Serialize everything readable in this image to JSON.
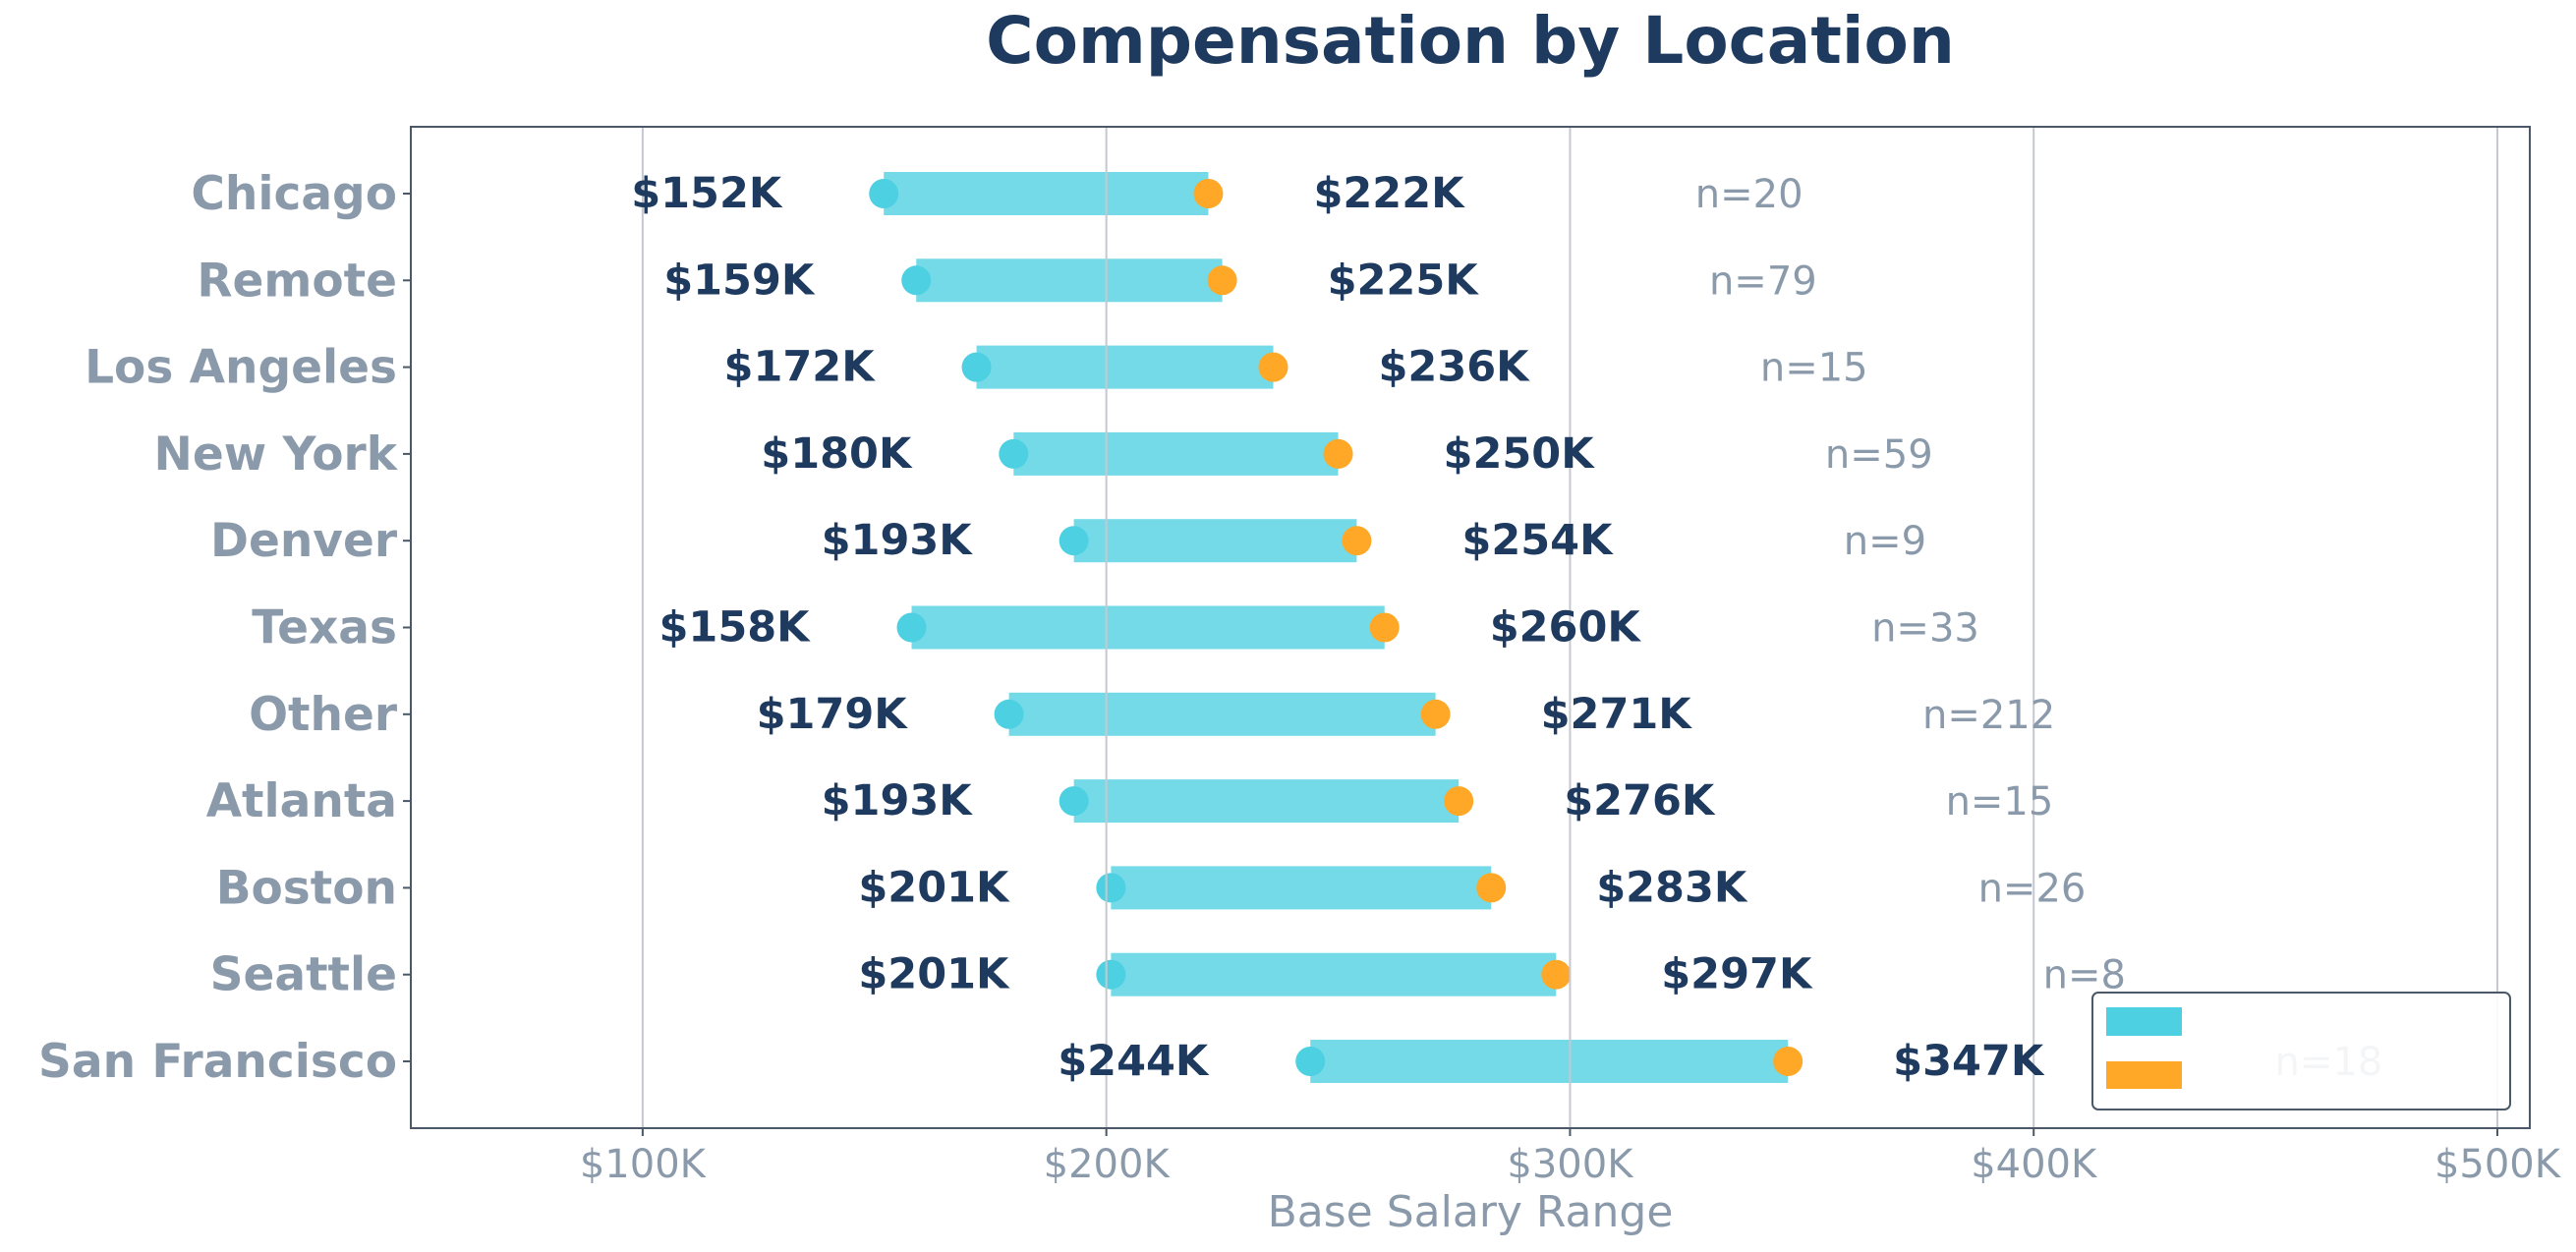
{
  "chart_data": {
    "type": "dumbbell",
    "title": "Compensation by Location",
    "xlabel": "Base Salary Range",
    "ylabel": "",
    "xlim": [
      50000,
      507000
    ],
    "x_ticks": [
      100000,
      200000,
      300000,
      400000,
      500000
    ],
    "x_tick_labels": [
      "$100K",
      "$200K",
      "$300K",
      "$400K",
      "$500K"
    ],
    "grid": "vertical",
    "legend": {
      "placement": "bottom-right",
      "entries": [
        "",
        ""
      ]
    },
    "colors": {
      "min": "#4dd0e1",
      "max": "#ffa726",
      "bar": "#4dd0e1",
      "title": "#1e3a5f",
      "label": "#8a9aab",
      "value": "#1e3a5f"
    },
    "categories": [
      "Chicago",
      "Remote",
      "Los Angeles",
      "New York",
      "Denver",
      "Texas",
      "Other",
      "Atlanta",
      "Boston",
      "Seattle",
      "San Francisco"
    ],
    "min_values": [
      152000,
      159000,
      172000,
      180000,
      193000,
      158000,
      179000,
      193000,
      201000,
      201000,
      244000
    ],
    "max_values": [
      222000,
      225000,
      236000,
      250000,
      254000,
      260000,
      271000,
      276000,
      283000,
      297000,
      347000
    ],
    "min_labels": [
      "$152K",
      "$159K",
      "$172K",
      "$180K",
      "$193K",
      "$158K",
      "$179K",
      "$193K",
      "$201K",
      "$201K",
      "$244K"
    ],
    "max_labels": [
      "$222K",
      "$225K",
      "$236K",
      "$250K",
      "$254K",
      "$260K",
      "$271K",
      "$276K",
      "$283K",
      "$297K",
      "$347K"
    ],
    "n_labels": [
      "n=20",
      "n=79",
      "n=15",
      "n=59",
      "n=9",
      "n=33",
      "n=212",
      "n=15",
      "n=26",
      "n=8",
      "n=18"
    ]
  }
}
